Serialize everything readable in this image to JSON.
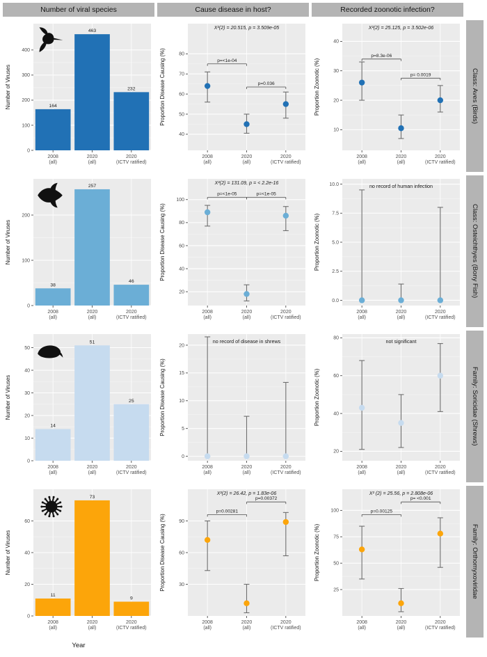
{
  "headers": [
    "Number of viral species",
    "Cause disease in host?",
    "Recorded zoonotic infection?"
  ],
  "x_axis_label": "Year",
  "x_categories": [
    [
      "2008",
      "(all)"
    ],
    [
      "2020",
      "(all)"
    ],
    [
      "2020",
      "(ICTV ratified)"
    ]
  ],
  "chart_data": [
    {
      "group": "Class: Aves (Birds)",
      "color": "#2171b5",
      "icon": "hummingbird-icon",
      "panels": {
        "counts": {
          "type": "bar",
          "ylabel": "Number of Viruses",
          "values": [
            164,
            463,
            232
          ],
          "ticks": [
            0,
            100,
            200,
            300,
            400
          ],
          "tick_labels": [
            "0",
            "100",
            "200",
            "300",
            "400"
          ],
          "ylim": [
            0,
            505
          ]
        },
        "disease": {
          "type": "pointrange",
          "ylabel": "Proportion Disease Causing (%)",
          "stat": "X²(2) = 20.515, p = 3.509e-05",
          "points": [
            64,
            45,
            55
          ],
          "lo": [
            56,
            40.5,
            48
          ],
          "hi": [
            71,
            50,
            61
          ],
          "ticks": [
            40,
            50,
            60,
            70,
            80
          ],
          "tick_labels": [
            "40",
            "50",
            "60",
            "70",
            "80"
          ],
          "ylim": [
            32,
            95
          ],
          "comparisons": [
            {
              "label": "p=<1e-04",
              "from": 0,
              "to": 1,
              "y": 75
            },
            {
              "label": "p=0.036",
              "from": 1,
              "to": 2,
              "y": 63.5
            }
          ]
        },
        "zoonotic": {
          "type": "pointrange",
          "ylabel": "Proportion Zoonotic (%)",
          "stat": "X²(2) = 25.125, p = 3.502e-06",
          "points": [
            26,
            10.5,
            20
          ],
          "lo": [
            20,
            7,
            16
          ],
          "hi": [
            33,
            15,
            25
          ],
          "ticks": [
            10,
            20,
            30,
            40
          ],
          "tick_labels": [
            "10",
            "20",
            "30",
            "40"
          ],
          "ylim": [
            3,
            46
          ],
          "comparisons": [
            {
              "label": "p=8.3e-06",
              "from": 0,
              "to": 1,
              "y": 34
            },
            {
              "label": "p= 0.0019",
              "from": 1,
              "to": 2,
              "y": 27.5
            }
          ]
        }
      }
    },
    {
      "group": "Class: Osteichthyes (Bony Fish)",
      "color": "#6baed6",
      "icon": "fish-icon",
      "panels": {
        "counts": {
          "type": "bar",
          "ylabel": "Number of Viruses",
          "values": [
            38,
            257,
            46
          ],
          "ticks": [
            0,
            100,
            200
          ],
          "tick_labels": [
            "0",
            "100",
            "200"
          ],
          "ylim": [
            0,
            280
          ]
        },
        "disease": {
          "type": "pointrange",
          "ylabel": "Proportion Disease Causing (%)",
          "stat": "X²(2) = 131.09, p = < 2.2e-16",
          "points": [
            89,
            18,
            86
          ],
          "lo": [
            77,
            12,
            73
          ],
          "hi": [
            95,
            26,
            94
          ],
          "ticks": [
            20,
            40,
            60,
            80,
            100
          ],
          "tick_labels": [
            "20",
            "40",
            "60",
            "80",
            "100"
          ],
          "ylim": [
            8,
            118
          ],
          "comparisons": [
            {
              "label": "p=<1e-05",
              "from": 0,
              "to": 1,
              "y": 102
            },
            {
              "label": "p=<1e-05",
              "from": 1,
              "to": 2,
              "y": 102
            }
          ]
        },
        "zoonotic": {
          "type": "pointrange",
          "ylabel": "Proportion Zoonotic (%)",
          "note": "no record of human infection",
          "points": [
            0,
            0,
            0
          ],
          "lo": [
            0,
            0,
            0
          ],
          "hi": [
            9.5,
            1.4,
            8.0
          ],
          "ticks": [
            0,
            2.5,
            5,
            7.5,
            10
          ],
          "tick_labels": [
            "0.0",
            "2.5",
            "5.0",
            "7.5",
            "10.0"
          ],
          "ylim": [
            -0.45,
            10.45
          ]
        }
      }
    },
    {
      "group": "Family: Soricidae (Shrews)",
      "color": "#c6dbef",
      "icon": "shrew-icon",
      "panels": {
        "counts": {
          "type": "bar",
          "ylabel": "Number of Viruses",
          "values": [
            14,
            51,
            25
          ],
          "ticks": [
            0,
            10,
            20,
            30,
            40,
            50
          ],
          "tick_labels": [
            "0",
            "10",
            "20",
            "30",
            "40",
            "50"
          ],
          "ylim": [
            0,
            56
          ]
        },
        "disease": {
          "type": "pointrange",
          "ylabel": "Proportion Disease Causing (%)",
          "note": "no record of disease in shrews",
          "points": [
            0,
            0,
            0
          ],
          "lo": [
            0,
            0,
            0
          ],
          "hi": [
            21.5,
            7.2,
            13.3
          ],
          "ticks": [
            0,
            5,
            10,
            15,
            20
          ],
          "tick_labels": [
            "0",
            "5",
            "10",
            "15",
            "20"
          ],
          "ylim": [
            -0.8,
            22
          ]
        },
        "zoonotic": {
          "type": "pointrange",
          "ylabel": "Proportion Zoonotic (%)",
          "note": "not significant",
          "points": [
            43,
            35,
            60
          ],
          "lo": [
            21,
            22,
            41
          ],
          "hi": [
            68,
            50,
            77
          ],
          "ticks": [
            20,
            40,
            60,
            80
          ],
          "tick_labels": [
            "20",
            "40",
            "60",
            "80"
          ],
          "ylim": [
            15,
            82
          ]
        }
      }
    },
    {
      "group": "Family: Orthomyxoviridae",
      "color": "#fca50a",
      "icon": "virus-icon",
      "panels": {
        "counts": {
          "type": "bar",
          "ylabel": "Number of Viruses",
          "values": [
            11,
            73,
            9
          ],
          "ticks": [
            0,
            20,
            40,
            60
          ],
          "tick_labels": [
            "0",
            "20",
            "40",
            "60"
          ],
          "ylim": [
            0,
            80
          ]
        },
        "disease": {
          "type": "pointrange",
          "ylabel": "Proportion Disease Causing (%)",
          "stat": "X²(2) = 26.42, p = 1.83e-06",
          "points": [
            72,
            12,
            89
          ],
          "lo": [
            43,
            3,
            57
          ],
          "hi": [
            90,
            30,
            98
          ],
          "ticks": [
            30,
            60,
            90
          ],
          "tick_labels": [
            "30",
            "60",
            "90"
          ],
          "ylim": [
            0,
            120
          ],
          "comparisons": [
            {
              "label": "p=0.00281",
              "from": 0,
              "to": 1,
              "y": 96
            },
            {
              "label": "p=0.00372",
              "from": 1,
              "to": 2,
              "y": 108
            }
          ]
        },
        "zoonotic": {
          "type": "pointrange",
          "ylabel": "Proportion Zoonotic (%)",
          "stat": "X² (2) = 25.56, p = 2.808e-06",
          "points": [
            63,
            12,
            78
          ],
          "lo": [
            35,
            4,
            46
          ],
          "hi": [
            85,
            26,
            93
          ],
          "ticks": [
            25,
            50,
            75,
            100
          ],
          "tick_labels": [
            "25",
            "50",
            "75",
            "100"
          ],
          "ylim": [
            0,
            120
          ],
          "comparisons": [
            {
              "label": "p=0.00125",
              "from": 0,
              "to": 1,
              "y": 96
            },
            {
              "label": "p= <0.001",
              "from": 1,
              "to": 2,
              "y": 108
            }
          ]
        }
      }
    }
  ]
}
